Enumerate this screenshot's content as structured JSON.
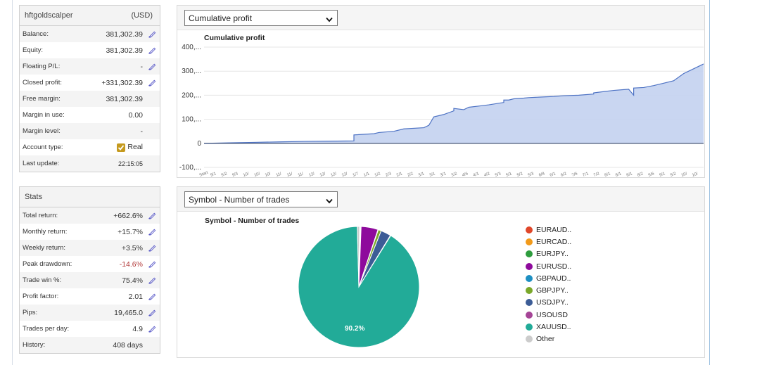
{
  "account": {
    "name": "hftgoldscalper",
    "currency": "(USD)",
    "rows": [
      {
        "label": "Balance:",
        "value": "381,302.39",
        "editable": true
      },
      {
        "label": "Equity:",
        "value": "381,302.39",
        "editable": true
      },
      {
        "label": "Floating P/L:",
        "value": "-",
        "editable": true
      },
      {
        "label": "Closed profit:",
        "value": "+331,302.39",
        "editable": true
      },
      {
        "label": "Free margin:",
        "value": "381,302.39",
        "editable": false
      },
      {
        "label": "Margin in use:",
        "value": "0.00",
        "editable": false
      },
      {
        "label": "Margin level:",
        "value": "-",
        "editable": false
      },
      {
        "label": "Account type:",
        "value": "Real",
        "editable": false
      },
      {
        "label": "Last update:",
        "value": "22:15:05",
        "editable": false
      }
    ]
  },
  "stats": {
    "title": "Stats",
    "rows": [
      {
        "label": "Total return:",
        "value": "+662.6%",
        "editable": true
      },
      {
        "label": "Monthly return:",
        "value": "+15.7%",
        "editable": true
      },
      {
        "label": "Weekly return:",
        "value": "+3.5%",
        "editable": true
      },
      {
        "label": "Peak drawdown:",
        "value": "-14.6%",
        "editable": true,
        "negative": true
      },
      {
        "label": "Trade win %:",
        "value": "75.4%",
        "editable": true
      },
      {
        "label": "Profit factor:",
        "value": "2.01",
        "editable": true
      },
      {
        "label": "Pips:",
        "value": "19,465.0",
        "editable": true
      },
      {
        "label": "Trades per day:",
        "value": "4.9",
        "editable": true
      },
      {
        "label": "History:",
        "value": "408 days",
        "editable": false
      }
    ]
  },
  "profit_panel": {
    "select_value": "Cumulative profit"
  },
  "symbol_panel": {
    "select_value": "Symbol - Number of trades"
  },
  "colors": {
    "area_fill": "#c3d2f0",
    "area_line": "#4e73c4",
    "pen": "#5a5ac8",
    "gold": "#c59a1e"
  },
  "chart_data": [
    {
      "type": "area",
      "title": "Cumulative profit",
      "ylim": [
        -100,
        400
      ],
      "y_ticks": [
        "400,...",
        "300,...",
        "200,...",
        "100,...",
        "0",
        "-100,..."
      ],
      "x_tick_labels": [
        "Start",
        "9/1",
        "9/2",
        "9/3",
        "10/",
        "10/",
        "10/",
        "11/",
        "11/",
        "11/",
        "12/",
        "12/",
        "12/",
        "12/",
        "1/7",
        "1/1",
        "1/2",
        "2/3",
        "2/1",
        "2/2",
        "3/1",
        "3/1",
        "3/1",
        "3/2",
        "4/6",
        "4/1",
        "4/2",
        "5/3",
        "5/1",
        "5/2",
        "5/3",
        "6/8",
        "6/1",
        "6/2",
        "7/6",
        "7/1",
        "7/2",
        "8/1",
        "8/1",
        "8/1",
        "8/2",
        "9/6",
        "9/1",
        "9/2",
        "10/",
        "10/"
      ],
      "series": [
        {
          "name": "Cumulative profit",
          "x": [
            0,
            0.05,
            0.1,
            0.15,
            0.2,
            0.25,
            0.3,
            0.3,
            0.34,
            0.35,
            0.38,
            0.4,
            0.44,
            0.45,
            0.46,
            0.48,
            0.5,
            0.5,
            0.52,
            0.53,
            0.55,
            0.57,
            0.6,
            0.6,
            0.61,
            0.62,
            0.64,
            0.65,
            0.67,
            0.7,
            0.72,
            0.75,
            0.78,
            0.78,
            0.8,
            0.82,
            0.85,
            0.86,
            0.86,
            0.88,
            0.9,
            0.92,
            0.94,
            0.96,
            0.98,
            1.0
          ],
          "values": [
            0,
            2,
            4,
            6,
            8,
            9,
            10,
            35,
            40,
            45,
            50,
            60,
            65,
            75,
            110,
            120,
            135,
            145,
            140,
            150,
            155,
            160,
            170,
            180,
            180,
            185,
            188,
            190,
            192,
            195,
            198,
            200,
            205,
            210,
            215,
            220,
            225,
            200,
            230,
            232,
            240,
            250,
            260,
            290,
            310,
            330
          ]
        }
      ]
    },
    {
      "type": "pie",
      "title": "Symbol - Number of trades",
      "data_label": "90.2%",
      "categories": [
        "EURAUD..",
        "EURCAD..",
        "EURJPY..",
        "EURUSD..",
        "GBPAUD..",
        "GBPJPY..",
        "USDJPY..",
        "USOUSD",
        "XAUUSD..",
        "Other"
      ],
      "values": [
        0.1,
        0.1,
        0.2,
        4.5,
        0.1,
        0.8,
        2.7,
        0.1,
        90.2,
        0.6
      ],
      "colors": [
        "#e0472a",
        "#f29a1a",
        "#2d9c3d",
        "#8e0a9c",
        "#1d8fc2",
        "#7aa82a",
        "#3c5c96",
        "#a54596",
        "#22ab98",
        "#cccccc"
      ]
    }
  ]
}
